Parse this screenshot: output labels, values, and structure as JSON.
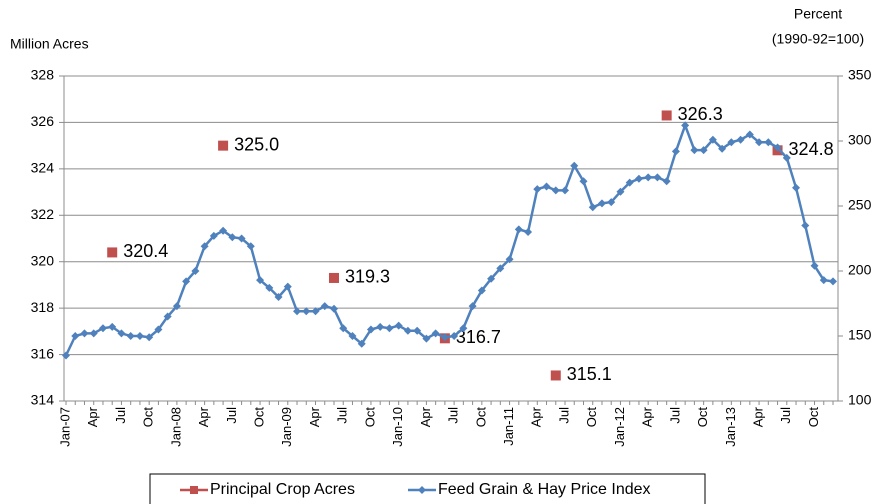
{
  "chart_data": {
    "type": "line",
    "ylabel": "Million Acres",
    "y2label": [
      "Percent",
      "(1990-92=100)"
    ],
    "categories": [
      "Jan-07",
      null,
      null,
      "Apr",
      null,
      null,
      "Jul",
      null,
      null,
      "Oct",
      null,
      null,
      "Jan-08",
      null,
      null,
      "Apr",
      null,
      null,
      "Jul",
      null,
      null,
      "Oct",
      null,
      null,
      "Jan-09",
      null,
      null,
      "Apr",
      null,
      null,
      "Jul",
      null,
      null,
      "Oct",
      null,
      null,
      "Jan-10",
      null,
      null,
      "Apr",
      null,
      null,
      "Jul",
      null,
      null,
      "Oct",
      null,
      null,
      "Jan-11",
      null,
      null,
      "Apr",
      null,
      null,
      "Jul",
      null,
      null,
      "Oct",
      null,
      null,
      "Jan-12",
      null,
      null,
      "Apr",
      null,
      null,
      "Jul",
      null,
      null,
      "Oct",
      null,
      null,
      "Jan-13",
      null,
      null,
      "Apr",
      null,
      null,
      "Jul",
      null,
      null,
      "Oct",
      null,
      null
    ],
    "ylim": [
      314,
      328
    ],
    "yticks": [
      314,
      316,
      318,
      320,
      322,
      324,
      326,
      328
    ],
    "y2lim": [
      100,
      350
    ],
    "y2ticks": [
      100,
      150,
      200,
      250,
      300,
      350
    ],
    "grid": true,
    "legend": "bottom",
    "series": [
      {
        "name": "Principal Crop Acres",
        "color": "#c0504d",
        "axis": "y",
        "marker": "square",
        "values": [
          null,
          null,
          null,
          null,
          null,
          320.4,
          null,
          null,
          null,
          null,
          null,
          null,
          null,
          null,
          null,
          null,
          null,
          325.0,
          null,
          null,
          null,
          null,
          null,
          null,
          null,
          null,
          null,
          null,
          null,
          319.3,
          null,
          null,
          null,
          null,
          null,
          null,
          null,
          null,
          null,
          null,
          null,
          316.7,
          null,
          null,
          null,
          null,
          null,
          null,
          null,
          null,
          null,
          null,
          null,
          315.1,
          null,
          null,
          null,
          null,
          null,
          null,
          null,
          null,
          null,
          null,
          null,
          326.3,
          null,
          null,
          null,
          null,
          null,
          null,
          null,
          null,
          null,
          null,
          null,
          324.8,
          null,
          null,
          null,
          null,
          null,
          null
        ],
        "value_labels": [
          null,
          null,
          null,
          null,
          null,
          "320.4",
          null,
          null,
          null,
          null,
          null,
          null,
          null,
          null,
          null,
          null,
          null,
          "325.0",
          null,
          null,
          null,
          null,
          null,
          null,
          null,
          null,
          null,
          null,
          null,
          "319.3",
          null,
          null,
          null,
          null,
          null,
          null,
          null,
          null,
          null,
          null,
          null,
          "316.7",
          null,
          null,
          null,
          null,
          null,
          null,
          null,
          null,
          null,
          null,
          null,
          "315.1",
          null,
          null,
          null,
          null,
          null,
          null,
          null,
          null,
          null,
          null,
          null,
          "326.3",
          null,
          null,
          null,
          null,
          null,
          null,
          null,
          null,
          null,
          null,
          null,
          "324.8",
          null,
          null,
          null,
          null,
          null,
          null
        ]
      },
      {
        "name": "Feed Grain & Hay Price Index",
        "color": "#4f81bd",
        "axis": "y2",
        "marker": "diamond",
        "values": [
          135,
          150,
          152,
          152,
          156,
          157,
          152,
          150,
          150,
          149,
          155,
          165,
          173,
          192,
          200,
          219,
          227,
          231,
          226,
          225,
          219,
          193,
          187,
          180,
          188,
          169,
          169,
          169,
          173,
          171,
          156,
          150,
          144,
          155,
          157,
          156,
          158,
          154,
          154,
          148,
          152,
          149,
          150,
          156,
          173,
          185,
          194,
          202,
          209,
          232,
          230,
          263,
          265,
          262,
          262,
          281,
          269,
          249,
          252,
          253,
          261,
          268,
          271,
          272,
          272,
          269,
          292,
          312,
          293,
          293,
          301,
          294,
          299,
          301,
          305,
          299,
          299,
          295,
          287,
          264,
          235,
          204,
          193,
          192
        ]
      }
    ]
  }
}
